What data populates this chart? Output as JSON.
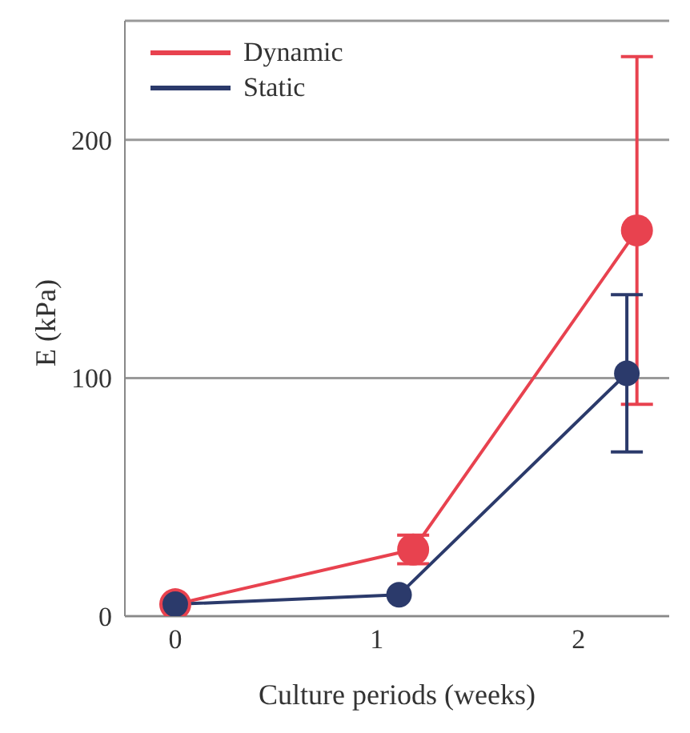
{
  "chart_data": {
    "type": "line",
    "xlabel": "Culture periods (weeks)",
    "ylabel": "E  (kPa)",
    "xlim": [
      -0.25,
      2.45
    ],
    "xticks": [
      0,
      1,
      2
    ],
    "ylim": [
      0,
      250
    ],
    "yticks": [
      0,
      100,
      200
    ],
    "grid": "y",
    "legend": "top left",
    "marker": "circle",
    "line_style": "solid",
    "series": [
      {
        "name": "Dynamic",
        "color": "#e8424f",
        "x": [
          0,
          1.18,
          2.29
        ],
        "values": [
          5,
          28,
          162
        ],
        "errors": [
          null,
          6,
          73
        ]
      },
      {
        "name": "Static",
        "color": "#2b3a6b",
        "x": [
          0,
          1.11,
          2.24
        ],
        "values": [
          5,
          9,
          102
        ],
        "errors": [
          null,
          null,
          33
        ]
      }
    ]
  }
}
